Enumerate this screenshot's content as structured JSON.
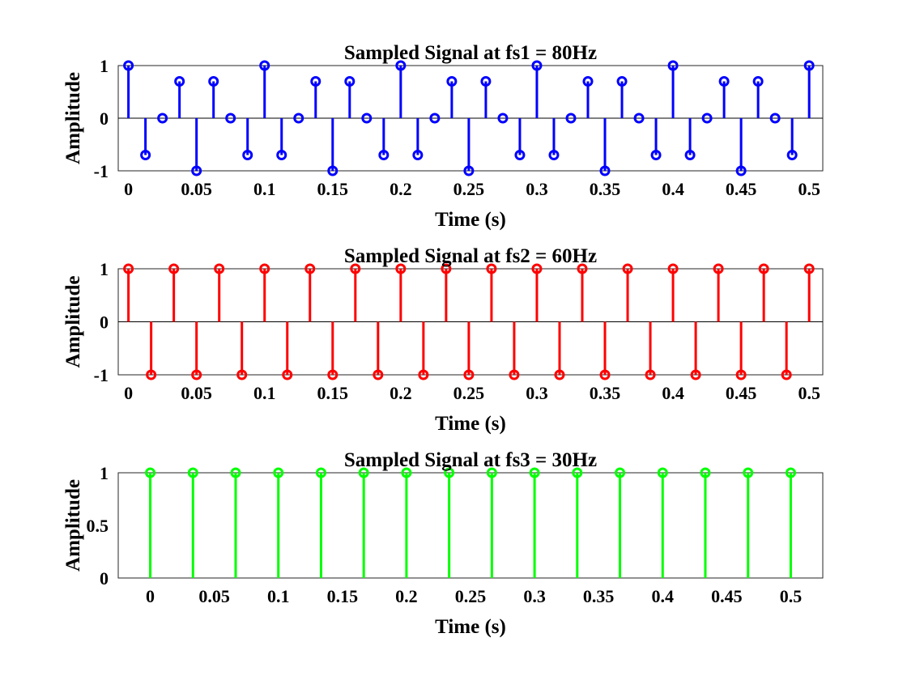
{
  "chart_data": [
    {
      "type": "stem",
      "title": "Sampled Signal at fs1 = 80Hz",
      "xlabel": "Time (s)",
      "ylabel": "Amplitude",
      "xlim": [
        -0.0075,
        0.51
      ],
      "ylim": [
        -1,
        1
      ],
      "xticks": [
        0,
        0.05,
        0.1,
        0.15,
        0.2,
        0.25,
        0.3,
        0.35,
        0.4,
        0.45,
        0.5
      ],
      "xtick_labels": [
        "0",
        "0.05",
        "0.1",
        "0.15",
        "0.2",
        "0.25",
        "0.3",
        "0.35",
        "0.4",
        "0.45",
        "0.5"
      ],
      "yticks": [
        -1,
        0,
        1
      ],
      "ytick_labels": [
        "-1",
        "0",
        "1"
      ],
      "color": "#0000ff",
      "grid": false,
      "x": [
        0,
        0.0125,
        0.025,
        0.0375,
        0.05,
        0.0625,
        0.075,
        0.0875,
        0.1,
        0.1125,
        0.125,
        0.1375,
        0.15,
        0.1625,
        0.175,
        0.1875,
        0.2,
        0.2125,
        0.225,
        0.2375,
        0.25,
        0.2625,
        0.275,
        0.2875,
        0.3,
        0.3125,
        0.325,
        0.3375,
        0.35,
        0.3625,
        0.375,
        0.3875,
        0.4,
        0.4125,
        0.425,
        0.4375,
        0.45,
        0.4625,
        0.475,
        0.4875,
        0.5
      ],
      "y": [
        1,
        -0.7,
        0,
        0.7,
        -1,
        0.7,
        0,
        -0.7,
        1,
        -0.7,
        0,
        0.7,
        -1,
        0.7,
        0,
        -0.7,
        1,
        -0.7,
        0,
        0.7,
        -1,
        0.7,
        0,
        -0.7,
        1,
        -0.7,
        0,
        0.7,
        -1,
        0.7,
        0,
        -0.7,
        1,
        -0.7,
        0,
        0.7,
        -1,
        0.7,
        0,
        -0.7,
        1
      ]
    },
    {
      "type": "stem",
      "title": "Sampled Signal at fs2 = 60Hz",
      "xlabel": "Time (s)",
      "ylabel": "Amplitude",
      "xlim": [
        -0.0075,
        0.51
      ],
      "ylim": [
        -1,
        1
      ],
      "xticks": [
        0,
        0.05,
        0.1,
        0.15,
        0.2,
        0.25,
        0.3,
        0.35,
        0.4,
        0.45,
        0.5
      ],
      "xtick_labels": [
        "0",
        "0.05",
        "0.1",
        "0.15",
        "0.2",
        "0.25",
        "0.3",
        "0.35",
        "0.4",
        "0.45",
        "0.5"
      ],
      "yticks": [
        -1,
        0,
        1
      ],
      "ytick_labels": [
        "-1",
        "0",
        "1"
      ],
      "color": "#ff0000",
      "grid": false,
      "x": [
        0,
        0.01667,
        0.03333,
        0.05,
        0.06667,
        0.08333,
        0.1,
        0.11667,
        0.13333,
        0.15,
        0.16667,
        0.18333,
        0.2,
        0.21667,
        0.23333,
        0.25,
        0.26667,
        0.28333,
        0.3,
        0.31667,
        0.33333,
        0.35,
        0.36667,
        0.38333,
        0.4,
        0.41667,
        0.43333,
        0.45,
        0.46667,
        0.48333,
        0.5
      ],
      "y": [
        1,
        -1,
        1,
        -1,
        1,
        -1,
        1,
        -1,
        1,
        -1,
        1,
        -1,
        1,
        -1,
        1,
        -1,
        1,
        -1,
        1,
        -1,
        1,
        -1,
        1,
        -1,
        1,
        -1,
        1,
        -1,
        1,
        -1,
        1
      ]
    },
    {
      "type": "stem",
      "title": "Sampled Signal at fs3 = 30Hz",
      "xlabel": "Time (s)",
      "ylabel": "Amplitude",
      "xlim": [
        -0.025,
        0.525
      ],
      "ylim": [
        0,
        1
      ],
      "xticks": [
        0,
        0.05,
        0.1,
        0.15,
        0.2,
        0.25,
        0.3,
        0.35,
        0.4,
        0.45,
        0.5
      ],
      "xtick_labels": [
        "0",
        "0.05",
        "0.1",
        "0.15",
        "0.2",
        "0.25",
        "0.3",
        "0.35",
        "0.4",
        "0.45",
        "0.5"
      ],
      "yticks": [
        0,
        0.5,
        1
      ],
      "ytick_labels": [
        "0",
        "0.5",
        "1"
      ],
      "color": "#00ff00",
      "grid": false,
      "x": [
        0,
        0.03333,
        0.06667,
        0.1,
        0.13333,
        0.16667,
        0.2,
        0.23333,
        0.26667,
        0.3,
        0.33333,
        0.36667,
        0.4,
        0.43333,
        0.46667,
        0.5
      ],
      "y": [
        1,
        1,
        1,
        1,
        1,
        1,
        1,
        1,
        1,
        1,
        1,
        1,
        1,
        1,
        1,
        1
      ]
    }
  ]
}
